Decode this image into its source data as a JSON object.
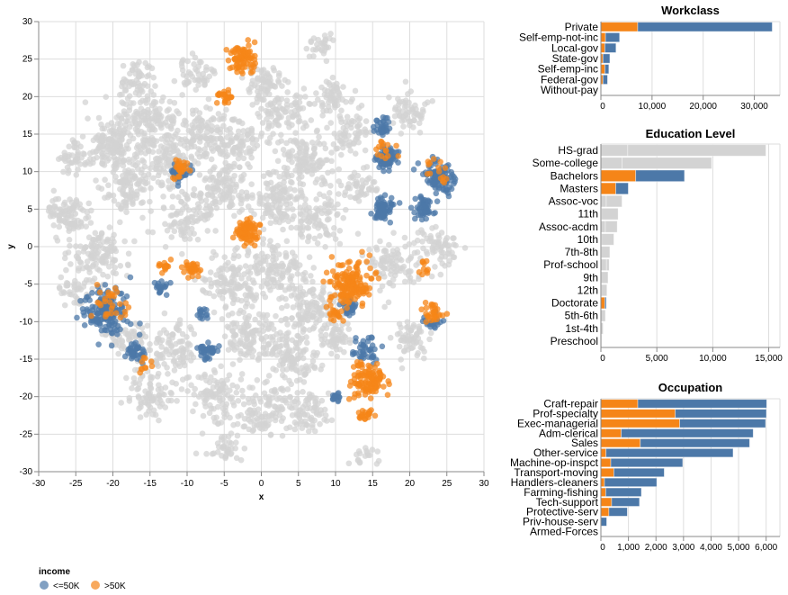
{
  "colors": {
    "<=50K": "#4c78a8",
    ">50K": "#f58518",
    "grey": "#d3d3d3",
    "grid": "#dddddd"
  },
  "legend": {
    "title": "income",
    "items": [
      {
        "label": "<=50K",
        "color": "#4c78a8"
      },
      {
        "label": ">50K",
        "color": "#f58518"
      }
    ],
    "placement": "bottom-left"
  },
  "chart_data": [
    {
      "type": "scatter",
      "xlabel": "x",
      "ylabel": "y",
      "xlim": [
        -30,
        30
      ],
      "ylim": [
        -30,
        30
      ],
      "grid": true,
      "xticks": [
        -30,
        -25,
        -20,
        -15,
        -10,
        -5,
        0,
        5,
        10,
        15,
        20,
        25,
        30
      ],
      "yticks": [
        -30,
        -25,
        -20,
        -15,
        -10,
        -5,
        0,
        5,
        10,
        15,
        20,
        25,
        30
      ],
      "clusters_note_fields": [
        "x",
        "y",
        "spread",
        "count",
        "group"
      ],
      "clusters": [
        [
          -20,
          14,
          3,
          150,
          "grey"
        ],
        [
          -15,
          17,
          3,
          120,
          "grey"
        ],
        [
          -18,
          8,
          3,
          120,
          "grey"
        ],
        [
          -26,
          4,
          2.5,
          100,
          "grey"
        ],
        [
          -22,
          -1,
          3,
          120,
          "grey"
        ],
        [
          -13,
          12,
          3,
          120,
          "grey"
        ],
        [
          -8,
          15,
          3,
          120,
          "grey"
        ],
        [
          -5,
          8,
          3,
          120,
          "grey"
        ],
        [
          -10,
          4,
          3,
          100,
          "grey"
        ],
        [
          -3,
          14,
          2.5,
          80,
          "grey"
        ],
        [
          3,
          18,
          3,
          100,
          "grey"
        ],
        [
          6,
          12,
          3,
          120,
          "grey"
        ],
        [
          2,
          6,
          3,
          120,
          "grey"
        ],
        [
          8,
          4,
          3,
          100,
          "grey"
        ],
        [
          10,
          20,
          2,
          60,
          "grey"
        ],
        [
          12,
          15,
          2,
          60,
          "grey"
        ],
        [
          20,
          18,
          2,
          60,
          "grey"
        ],
        [
          -4,
          -5,
          3,
          120,
          "grey"
        ],
        [
          2,
          -3,
          3,
          120,
          "grey"
        ],
        [
          6,
          -8,
          3,
          120,
          "grey"
        ],
        [
          -2,
          -12,
          3,
          120,
          "grey"
        ],
        [
          4,
          -15,
          3,
          120,
          "grey"
        ],
        [
          -6,
          -20,
          3,
          100,
          "grey"
        ],
        [
          0,
          -22,
          3,
          100,
          "grey"
        ],
        [
          6,
          -22,
          2.5,
          80,
          "grey"
        ],
        [
          -12,
          -14,
          3,
          100,
          "grey"
        ],
        [
          -15,
          -20,
          2.5,
          80,
          "grey"
        ],
        [
          -18,
          -12,
          2,
          60,
          "grey"
        ],
        [
          -5,
          -27,
          2,
          40,
          "grey"
        ],
        [
          18,
          -2,
          3,
          100,
          "grey"
        ],
        [
          24,
          0,
          2,
          60,
          "grey"
        ],
        [
          20,
          -12,
          2,
          60,
          "grey"
        ],
        [
          10,
          -12,
          2,
          60,
          "grey"
        ],
        [
          -25,
          12,
          2,
          50,
          "grey"
        ],
        [
          -25,
          -6,
          2,
          40,
          "grey"
        ],
        [
          0,
          22,
          2,
          60,
          "grey"
        ],
        [
          -9,
          23,
          2,
          50,
          "grey"
        ],
        [
          -17,
          22,
          2,
          60,
          "grey"
        ],
        [
          13,
          8,
          2,
          50,
          "grey"
        ],
        [
          8,
          27,
          1.5,
          30,
          "grey"
        ],
        [
          14,
          -28,
          1.5,
          20,
          "grey"
        ],
        [
          17,
          12,
          1.2,
          70,
          "<=50K"
        ],
        [
          16.5,
          5,
          1.2,
          60,
          "<=50K"
        ],
        [
          24,
          9,
          1.8,
          100,
          "<=50K"
        ],
        [
          22,
          5,
          1.2,
          50,
          "<=50K"
        ],
        [
          -11,
          10,
          1,
          30,
          "<=50K"
        ],
        [
          -21,
          -8.5,
          2.5,
          150,
          "<=50K"
        ],
        [
          -17,
          -14,
          1.2,
          40,
          "<=50K"
        ],
        [
          -7.3,
          -14,
          1,
          40,
          "<=50K"
        ],
        [
          10,
          -20,
          0.7,
          15,
          "<=50K"
        ],
        [
          14,
          -14,
          1.5,
          40,
          "<=50K"
        ],
        [
          12,
          -8,
          1,
          30,
          "<=50K"
        ],
        [
          -13,
          -5.5,
          1,
          20,
          "<=50K"
        ],
        [
          23,
          -10,
          1,
          20,
          "<=50K"
        ],
        [
          -8,
          -9,
          0.8,
          15,
          "<=50K"
        ],
        [
          16.5,
          16,
          1,
          30,
          "<=50K"
        ],
        [
          -2.5,
          25,
          1.6,
          80,
          ">50K"
        ],
        [
          -5,
          20,
          0.8,
          25,
          ">50K"
        ],
        [
          -2,
          2,
          1.2,
          90,
          ">50K"
        ],
        [
          12,
          -5,
          2.2,
          160,
          ">50K"
        ],
        [
          14.5,
          -17.5,
          2,
          110,
          ">50K"
        ],
        [
          14,
          -22.5,
          0.8,
          20,
          ">50K"
        ],
        [
          -9.5,
          -3,
          1,
          30,
          ">50K"
        ],
        [
          -13,
          -2.5,
          0.7,
          15,
          ">50K"
        ],
        [
          23,
          -9,
          1.2,
          30,
          ">50K"
        ],
        [
          -11,
          10.5,
          1,
          25,
          ">50K"
        ],
        [
          -20,
          -8,
          2,
          30,
          ">50K"
        ],
        [
          17,
          13,
          1.2,
          15,
          ">50K"
        ],
        [
          24,
          10,
          1.5,
          15,
          ">50K"
        ],
        [
          -16,
          -16,
          1,
          10,
          ">50K"
        ],
        [
          22,
          -3,
          0.8,
          10,
          ">50K"
        ],
        [
          10,
          -9,
          1,
          20,
          ">50K"
        ]
      ]
    },
    {
      "type": "bar",
      "stacked": true,
      "orientation": "horizontal",
      "title": "Workclass",
      "xlim": [
        0,
        35000
      ],
      "xticks": [
        0,
        10000,
        20000,
        30000
      ],
      "categories": [
        "Private",
        "Self-emp-not-inc",
        "Local-gov",
        "State-gov",
        "Self-emp-inc",
        "Federal-gov",
        "Without-pay"
      ],
      "series": [
        {
          "name": ">50K",
          "values": [
            7200,
            900,
            770,
            400,
            770,
            400,
            2
          ]
        },
        {
          "name": "<=50K",
          "values": [
            26300,
            2750,
            2180,
            1350,
            780,
            900,
            18
          ]
        }
      ],
      "highlighted": [
        true,
        true,
        true,
        true,
        true,
        true,
        true
      ]
    },
    {
      "type": "bar",
      "stacked": true,
      "orientation": "horizontal",
      "title": "Education Level",
      "xlim": [
        0,
        16000
      ],
      "xticks": [
        0,
        5000,
        10000,
        15000
      ],
      "categories": [
        "HS-grad",
        "Some-college",
        "Bachelors",
        "Masters",
        "Assoc-voc",
        "11th",
        "Assoc-acdm",
        "10th",
        "7th-8th",
        "Prof-school",
        "9th",
        "12th",
        "Doctorate",
        "5th-6th",
        "1st-4th",
        "Preschool"
      ],
      "series": [
        {
          "name": ">50K",
          "values": [
            2400,
            1900,
            3110,
            1330,
            480,
            50,
            400,
            60,
            40,
            500,
            30,
            40,
            350,
            15,
            5,
            0
          ]
        },
        {
          "name": "<=50K",
          "values": [
            12350,
            8000,
            4360,
            1120,
            1410,
            1490,
            1060,
            1100,
            760,
            240,
            610,
            500,
            130,
            385,
            195,
            60
          ]
        }
      ],
      "highlighted": [
        false,
        false,
        true,
        true,
        false,
        false,
        false,
        false,
        false,
        false,
        false,
        false,
        true,
        false,
        false,
        false
      ]
    },
    {
      "type": "bar",
      "stacked": true,
      "orientation": "horizontal",
      "title": "Occupation",
      "xlim": [
        0,
        6500
      ],
      "xticks": [
        0,
        1000,
        2000,
        3000,
        4000,
        5000,
        6000
      ],
      "categories": [
        "Craft-repair",
        "Prof-specialty",
        "Exec-managerial",
        "Adm-clerical",
        "Sales",
        "Other-service",
        "Machine-op-inspct",
        "Transport-moving",
        "Handlers-cleaners",
        "Farming-fishing",
        "Tech-support",
        "Protective-serv",
        "Priv-house-serv",
        "Armed-Forces"
      ],
      "series": [
        {
          "name": ">50K",
          "values": [
            1340,
            2700,
            2860,
            740,
            1430,
            185,
            360,
            470,
            130,
            175,
            390,
            290,
            5,
            3
          ]
        },
        {
          "name": "<=50K",
          "values": [
            4680,
            3310,
            3120,
            4790,
            3970,
            4615,
            2610,
            1830,
            1900,
            1295,
            1010,
            670,
            205,
            12
          ]
        }
      ],
      "highlighted": [
        true,
        true,
        true,
        true,
        true,
        true,
        true,
        true,
        true,
        true,
        true,
        true,
        true,
        true
      ]
    }
  ]
}
